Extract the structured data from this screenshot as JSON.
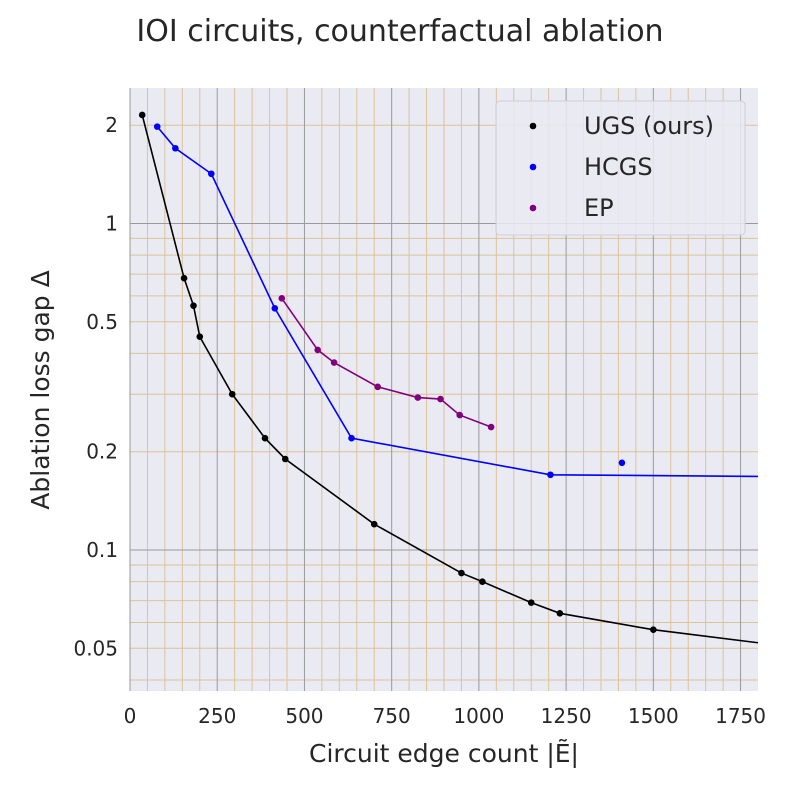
{
  "chart_data": {
    "type": "line",
    "title": "IOI circuits, counterfactual ablation",
    "xlabel": "Circuit edge count |Ẽ|",
    "ylabel": "Ablation loss gap Δ",
    "xlim": [
      0,
      1800
    ],
    "ylim": [
      0.037,
      2.6
    ],
    "yscale": "log",
    "grid": true,
    "legend_position": "top-right",
    "x_ticks": [
      0,
      250,
      500,
      750,
      1000,
      1250,
      1500,
      1750
    ],
    "y_ticks": [
      {
        "value": 0.05,
        "label": "0.05"
      },
      {
        "value": 0.1,
        "label": "0.1"
      },
      {
        "value": 0.2,
        "label": "0.2"
      },
      {
        "value": 0.5,
        "label": "0.5"
      },
      {
        "value": 1,
        "label": "1"
      },
      {
        "value": 2,
        "label": "2"
      }
    ],
    "series": [
      {
        "name": "UGS (ours)",
        "color": "#000000",
        "points": [
          [
            35,
            2.15
          ],
          [
            155,
            0.68
          ],
          [
            182,
            0.56
          ],
          [
            200,
            0.45
          ],
          [
            293,
            0.3
          ],
          [
            387,
            0.22
          ],
          [
            445,
            0.19
          ],
          [
            700,
            0.12
          ],
          [
            950,
            0.085
          ],
          [
            1010,
            0.08
          ],
          [
            1150,
            0.069
          ],
          [
            1232,
            0.064
          ],
          [
            1500,
            0.057
          ],
          [
            1800,
            0.052
          ]
        ],
        "connected": true
      },
      {
        "name": "HCGS",
        "color": "#0000ff",
        "points": [
          [
            78,
            1.98
          ],
          [
            130,
            1.7
          ],
          [
            233,
            1.42
          ],
          [
            415,
            0.55
          ],
          [
            635,
            0.22
          ],
          [
            1205,
            0.17
          ],
          [
            1800,
            0.168
          ]
        ],
        "connected": true,
        "extra_points": [
          [
            1410,
            0.185
          ]
        ]
      },
      {
        "name": "EP",
        "color": "#800080",
        "points": [
          [
            435,
            0.59
          ],
          [
            538,
            0.41
          ],
          [
            585,
            0.375
          ],
          [
            710,
            0.316
          ],
          [
            825,
            0.293
          ],
          [
            890,
            0.29
          ],
          [
            945,
            0.259
          ],
          [
            1035,
            0.238
          ]
        ],
        "connected": true
      }
    ]
  }
}
